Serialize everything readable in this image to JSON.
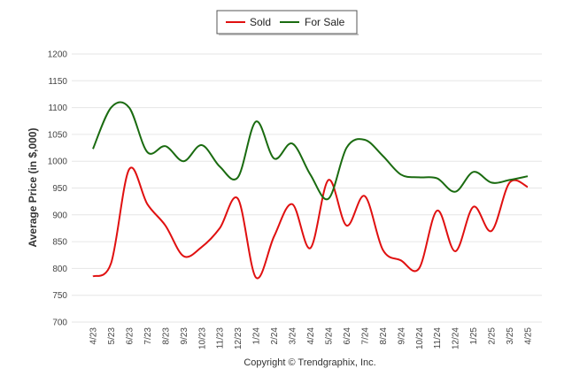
{
  "chart_data": {
    "type": "line",
    "ylabel": "Average Price (in $,000)",
    "xlabel": "",
    "title": "",
    "copyright": "Copyright © Trendgraphix, Inc.",
    "ylim": [
      700,
      1200
    ],
    "yticks": [
      700,
      750,
      800,
      850,
      900,
      950,
      1000,
      1050,
      1100,
      1150,
      1200
    ],
    "grid": true,
    "legend_position": "top-center",
    "categories": [
      "4/23",
      "5/23",
      "6/23",
      "7/23",
      "8/23",
      "9/23",
      "10/23",
      "11/23",
      "12/23",
      "1/24",
      "2/24",
      "3/24",
      "4/24",
      "5/24",
      "6/24",
      "7/24",
      "8/24",
      "9/24",
      "10/24",
      "11/24",
      "12/24",
      "1/25",
      "2/25",
      "3/25",
      "4/25"
    ],
    "series": [
      {
        "name": "Sold",
        "color": "#e01010",
        "values": [
          785,
          810,
          985,
          920,
          880,
          823,
          840,
          875,
          930,
          783,
          860,
          920,
          838,
          965,
          880,
          935,
          835,
          815,
          800,
          908,
          832,
          915,
          870,
          960,
          952
        ]
      },
      {
        "name": "For Sale",
        "color": "#1a6b10",
        "values": [
          1023,
          1100,
          1100,
          1017,
          1028,
          1000,
          1030,
          990,
          970,
          1074,
          1005,
          1033,
          975,
          930,
          1025,
          1040,
          1010,
          975,
          970,
          968,
          943,
          980,
          960,
          965,
          972
        ]
      }
    ]
  }
}
